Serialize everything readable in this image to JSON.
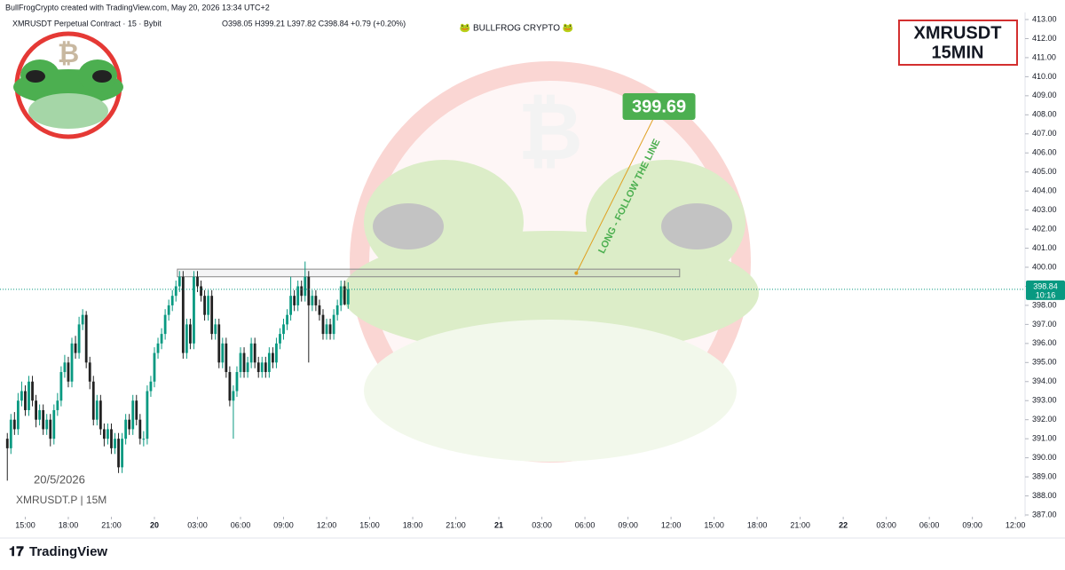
{
  "chart_data": {
    "type": "candlestick",
    "credit": "BullFrogCrypto created with TradingView.com, May 20, 2026 13:34 UTC+2",
    "title": "XMRUSDT Perpetual Contract · 15 · Bybit",
    "ohlc_label": "O398.05  H399.21  L397.82  C398.84  +0.79 (+0.20%)",
    "watermark": "🐸 BULLFROG CRYPTO 🐸",
    "box_label": [
      "XMRUSDT",
      "15MIN"
    ],
    "date_label": "20/5/2026",
    "symbol_label": "XMRUSDT.P | 15M",
    "brand": "TradingView",
    "up_color": "#089981",
    "down_color": "#222222",
    "xlim": [
      13.24,
      84.67
    ],
    "ylim": [
      387,
      413
    ],
    "xticks": [
      {
        "value": 15,
        "label": "15:00"
      },
      {
        "value": 18,
        "label": "18:00"
      },
      {
        "value": 21,
        "label": "21:00"
      },
      {
        "value": 24,
        "label": "20"
      },
      {
        "value": 27,
        "label": "03:00"
      },
      {
        "value": 30,
        "label": "06:00"
      },
      {
        "value": 33,
        "label": "09:00"
      },
      {
        "value": 36,
        "label": "12:00"
      },
      {
        "value": 39,
        "label": "15:00"
      },
      {
        "value": 42,
        "label": "18:00"
      },
      {
        "value": 45,
        "label": "21:00"
      },
      {
        "value": 48,
        "label": "21"
      },
      {
        "value": 51,
        "label": "03:00"
      },
      {
        "value": 54,
        "label": "06:00"
      },
      {
        "value": 57,
        "label": "09:00"
      },
      {
        "value": 60,
        "label": "12:00"
      },
      {
        "value": 63,
        "label": "15:00"
      },
      {
        "value": 66,
        "label": "18:00"
      },
      {
        "value": 69,
        "label": "21:00"
      },
      {
        "value": 72,
        "label": "22"
      },
      {
        "value": 75,
        "label": "03:00"
      },
      {
        "value": 78,
        "label": "06:00"
      },
      {
        "value": 81,
        "label": "09:00"
      },
      {
        "value": 84,
        "label": "12:00"
      }
    ],
    "yticks": [
      {
        "value": 387,
        "label": "387.00"
      },
      {
        "value": 388,
        "label": "388.00"
      },
      {
        "value": 389,
        "label": "389.00"
      },
      {
        "value": 390,
        "label": "390.00"
      },
      {
        "value": 391,
        "label": "391.00"
      },
      {
        "value": 392,
        "label": "392.00"
      },
      {
        "value": 393,
        "label": "393.00"
      },
      {
        "value": 394,
        "label": "394.00"
      },
      {
        "value": 395,
        "label": "395.00"
      },
      {
        "value": 396,
        "label": "396.00"
      },
      {
        "value": 397,
        "label": "397.00"
      },
      {
        "value": 398,
        "label": "398.00"
      },
      {
        "value": 399,
        "label": "399.00"
      },
      {
        "value": 400,
        "label": "400.00"
      },
      {
        "value": 401,
        "label": "401.00"
      },
      {
        "value": 402,
        "label": "402.00"
      },
      {
        "value": 403,
        "label": "403.00"
      },
      {
        "value": 404,
        "label": "404.00"
      },
      {
        "value": 405,
        "label": "405.00"
      },
      {
        "value": 406,
        "label": "406.00"
      },
      {
        "value": 407,
        "label": "407.00"
      },
      {
        "value": 408,
        "label": "408.00"
      },
      {
        "value": 409,
        "label": "409.00"
      },
      {
        "value": 410,
        "label": "410.00"
      },
      {
        "value": 411,
        "label": "411.00"
      },
      {
        "value": 412,
        "label": "412.00"
      },
      {
        "value": 413,
        "label": "413.00"
      }
    ],
    "x": [
      13.75,
      14,
      14.25,
      14.5,
      14.75,
      15,
      15.25,
      15.5,
      15.75,
      16,
      16.25,
      16.5,
      16.75,
      17,
      17.25,
      17.5,
      17.75,
      18,
      18.25,
      18.5,
      18.75,
      19,
      19.25,
      19.5,
      19.75,
      20,
      20.25,
      20.5,
      20.75,
      21,
      21.25,
      21.5,
      21.75,
      22,
      22.25,
      22.5,
      22.75,
      23,
      23.25,
      23.5,
      23.75,
      24,
      24.25,
      24.5,
      24.75,
      25,
      25.25,
      25.5,
      25.75,
      26,
      26.25,
      26.5,
      26.75,
      27,
      27.25,
      27.5,
      27.75,
      28,
      28.25,
      28.5,
      28.75,
      29,
      29.25,
      29.5,
      29.75,
      30,
      30.25,
      30.5,
      30.75,
      31,
      31.25,
      31.5,
      31.75,
      32,
      32.25,
      32.5,
      32.75,
      33,
      33.25,
      33.5,
      33.75,
      34,
      34.25,
      34.5,
      34.75,
      35,
      35.25,
      35.5,
      35.75,
      36,
      36.25,
      36.5,
      36.75,
      37,
      37.25,
      37.5
    ],
    "open": [
      391,
      390.5,
      392,
      391.5,
      393,
      393.5,
      392.5,
      394,
      393,
      392,
      392.5,
      391.5,
      392,
      391,
      392.5,
      393,
      394.5,
      395,
      394,
      396,
      395.5,
      397,
      397.5,
      395,
      394,
      392,
      393,
      391.5,
      391,
      391.5,
      390.5,
      391,
      389.5,
      391,
      392,
      391.5,
      393,
      392,
      391,
      391,
      393.5,
      394,
      395.5,
      396,
      396.5,
      397.5,
      398,
      398.5,
      399,
      399.5,
      395.5,
      397,
      396,
      399.5,
      399,
      398.5,
      397.5,
      398.5,
      396.5,
      397,
      395,
      396,
      394.5,
      393,
      393.5,
      394.5,
      395.5,
      394.5,
      395,
      396,
      395,
      394.5,
      395,
      394.5,
      395.5,
      395,
      396,
      396.5,
      397,
      397.5,
      398.5,
      398,
      399,
      398.5,
      399.5,
      398,
      398.5,
      398,
      397.5,
      396.5,
      397,
      396.5,
      397.5,
      398,
      399,
      398.05
    ],
    "high": [
      391.3,
      392.3,
      392.4,
      393.4,
      394,
      393.8,
      394.3,
      394.3,
      393.3,
      392.8,
      392.8,
      392.3,
      392.3,
      392.8,
      393.4,
      394.8,
      395.4,
      395.3,
      396.3,
      396.4,
      397.4,
      397.8,
      397.7,
      395.3,
      394.3,
      393.3,
      393.3,
      391.8,
      391.8,
      391.8,
      391.3,
      391.3,
      391.3,
      392.3,
      392.3,
      393.3,
      393.3,
      392.3,
      391.4,
      393.8,
      394.3,
      395.8,
      396.3,
      396.8,
      397.8,
      398.3,
      398.8,
      399.3,
      399.8,
      399.8,
      397.3,
      397.3,
      399.8,
      399.8,
      399.3,
      398.8,
      398.8,
      398.8,
      397.3,
      397.3,
      396.3,
      396.3,
      394.8,
      393.8,
      394.8,
      395.8,
      395.8,
      395.3,
      396.3,
      396.3,
      395.3,
      395.3,
      395.3,
      395.8,
      395.8,
      396.3,
      396.8,
      397.3,
      397.8,
      399.5,
      398.8,
      399.3,
      399.3,
      400.3,
      399.8,
      398.8,
      398.8,
      398.3,
      397.8,
      397.3,
      397.3,
      397.8,
      398.3,
      399.3,
      399.3,
      399.21
    ],
    "low": [
      388.8,
      390.2,
      391.2,
      391.2,
      392.7,
      392.2,
      392.2,
      392.7,
      391.6,
      391.7,
      391.2,
      391.2,
      390.6,
      390.7,
      392.2,
      392.7,
      394.2,
      393.7,
      393.7,
      395.2,
      395.2,
      396.7,
      394.7,
      393.6,
      391.7,
      391.7,
      391.2,
      390.6,
      390.7,
      390.2,
      390.2,
      389.2,
      389.2,
      390.7,
      391.2,
      391.2,
      391.7,
      390.7,
      390.6,
      390.7,
      393.2,
      393.7,
      395.2,
      395.7,
      396.2,
      397.2,
      397.7,
      398.2,
      398.7,
      395.2,
      395.2,
      395.7,
      395.7,
      398.7,
      398.2,
      397.2,
      397.2,
      396.2,
      396.2,
      394.7,
      394.7,
      394.2,
      392.7,
      391,
      393.2,
      394.2,
      394.2,
      394.2,
      394.7,
      394.7,
      394.2,
      394.2,
      394.2,
      394.2,
      394.7,
      394.7,
      395.7,
      396.2,
      396.7,
      397.2,
      397.7,
      397.7,
      398.2,
      398.2,
      395,
      397.7,
      397.7,
      397.2,
      396.2,
      396.2,
      396.2,
      396.2,
      397.2,
      397.7,
      398,
      397.82
    ],
    "close": [
      390.5,
      392,
      391.5,
      393,
      393.5,
      392.5,
      394,
      393,
      392,
      392.5,
      391.5,
      392,
      391,
      392.5,
      393,
      394.5,
      395,
      394,
      396,
      395.5,
      397,
      397.5,
      395,
      394,
      392,
      393,
      391.5,
      391,
      391.5,
      390.5,
      391,
      389.5,
      391,
      392,
      391.5,
      393,
      392,
      391,
      391,
      393.5,
      394,
      395.5,
      396,
      396.5,
      397.5,
      398,
      398.5,
      399,
      399.5,
      395.5,
      397,
      396,
      399.5,
      399,
      398.5,
      397.5,
      398.5,
      396.5,
      397,
      395,
      396,
      394.5,
      393,
      393.5,
      394.5,
      395.5,
      394.5,
      395,
      396,
      395,
      394.5,
      395,
      394.5,
      395.5,
      395,
      396,
      396.5,
      397,
      397.5,
      398.5,
      398,
      399,
      398.5,
      399.5,
      398,
      398.5,
      398,
      397.5,
      396.5,
      397,
      396.5,
      397.5,
      398,
      399,
      398.05,
      398.84
    ],
    "last_price": {
      "value": 398.84,
      "countdown": "10:16",
      "color": "#089981"
    },
    "zone": {
      "x": [
        25.6,
        60.6
      ],
      "y": [
        399.5,
        399.9
      ]
    },
    "trend_line": {
      "x": [
        53.4,
        59.1
      ],
      "y": [
        399.69,
        408.3
      ],
      "label": "LONG - FOLLOW THE LINE",
      "color": "#4caf50"
    },
    "target": {
      "value": 399.69,
      "label": "399.69"
    }
  }
}
